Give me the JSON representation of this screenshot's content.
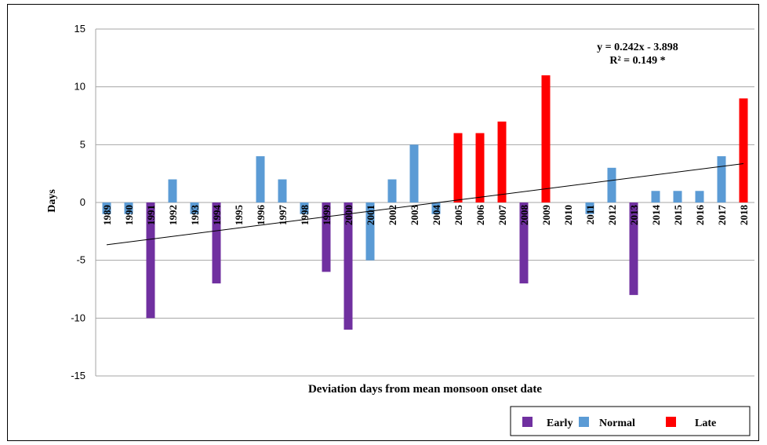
{
  "chart_data": {
    "type": "bar",
    "title": "",
    "xlabel": "Deviation days from mean monsoon onset date",
    "ylabel": "Days",
    "ylim": [
      -15,
      15
    ],
    "yticks": [
      15,
      10,
      5,
      0,
      -5,
      -10,
      -15
    ],
    "grid": true,
    "legend_position": "bottom-right",
    "categories": [
      "1989",
      "1990",
      "1991",
      "1992",
      "1993",
      "1994",
      "1995",
      "1996",
      "1997",
      "1998",
      "1999",
      "2000",
      "2001",
      "2002",
      "2003",
      "2004",
      "2005",
      "2006",
      "2007",
      "2008",
      "2009",
      "2010",
      "2011",
      "2012",
      "2013",
      "2014",
      "2015",
      "2016",
      "2017",
      "2018"
    ],
    "values": [
      -1,
      -1,
      -10,
      2,
      -1,
      -7,
      0,
      4,
      2,
      -1,
      -6,
      -11,
      -5,
      2,
      5,
      -1,
      6,
      6,
      7,
      -7,
      11,
      0,
      -1,
      3,
      -8,
      1,
      1,
      1,
      4,
      9
    ],
    "classes": [
      "Normal",
      "Normal",
      "Early",
      "Normal",
      "Normal",
      "Early",
      "Normal",
      "Normal",
      "Normal",
      "Normal",
      "Early",
      "Early",
      "Normal",
      "Normal",
      "Normal",
      "Normal",
      "Late",
      "Late",
      "Late",
      "Early",
      "Late",
      "Normal",
      "Normal",
      "Normal",
      "Early",
      "Normal",
      "Normal",
      "Normal",
      "Normal",
      "Late"
    ],
    "legend": [
      {
        "name": "Early",
        "color": "#7030a0"
      },
      {
        "name": "Normal",
        "color": "#5b9bd5"
      },
      {
        "name": "Late",
        "color": "#ff0000"
      }
    ],
    "trendline": {
      "slope": 0.242,
      "intercept": -3.898,
      "equation": "y = 0.242x - 3.898",
      "r_squared": "R² = 0.149 *"
    }
  }
}
